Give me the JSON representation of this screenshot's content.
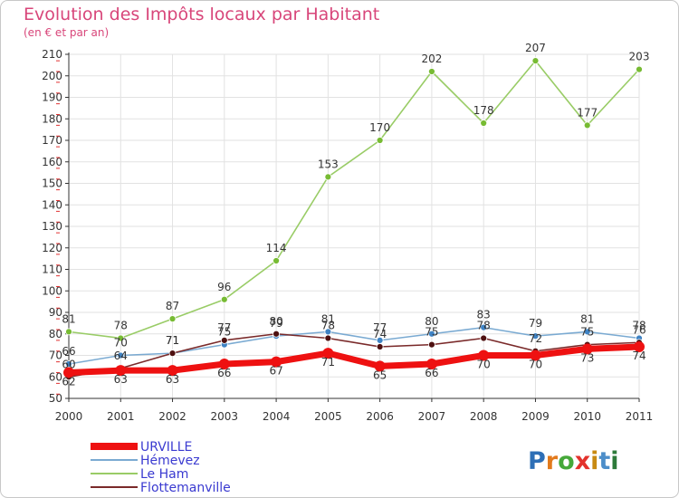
{
  "chart_data": {
    "type": "line",
    "title": "Evolution des Impôts locaux par Habitant",
    "subtitle": "(en € et par an)",
    "xlabel": "",
    "ylabel": "",
    "ylim": [
      50,
      210
    ],
    "yticks": [
      50,
      60,
      70,
      80,
      90,
      100,
      110,
      120,
      130,
      140,
      150,
      160,
      170,
      180,
      190,
      200,
      210
    ],
    "grid": true,
    "legend_position": "bottom-left",
    "x": [
      "2000",
      "2001",
      "2002",
      "2003",
      "2004",
      "2005",
      "2006",
      "2007",
      "2008",
      "2009",
      "2010",
      "2011"
    ],
    "series": [
      {
        "name": "Le Ham",
        "color": "#99cc66",
        "marker": "#77bb33",
        "values": [
          81,
          78,
          87,
          96,
          114,
          153,
          170,
          202,
          178,
          207,
          177,
          203
        ]
      },
      {
        "name": "Hémevez",
        "color": "#7aaad2",
        "marker": "#3f83c4",
        "values": [
          66,
          70,
          71,
          75,
          79,
          81,
          77,
          80,
          83,
          79,
          81,
          78
        ]
      },
      {
        "name": "Flottemanville",
        "color": "#7a2a2a",
        "marker": "#4e1010",
        "values": [
          60,
          64,
          71,
          77,
          80,
          78,
          74,
          75,
          78,
          72,
          75,
          76
        ]
      },
      {
        "name": "URVILLE",
        "color": "#ee1111",
        "marker": "#ee1111",
        "values": [
          62,
          63,
          63,
          66,
          67,
          71,
          65,
          66,
          70,
          70,
          73,
          74
        ]
      }
    ],
    "legend": [
      "URVILLE",
      "Hémevez",
      "Le Ham",
      "Flottemanville"
    ]
  },
  "logo": {
    "letters": [
      "P",
      "r",
      "o",
      "x",
      "i",
      "t",
      "i"
    ],
    "colors": [
      "#2e6fb6",
      "#e27a1c",
      "#46a83a",
      "#e3322c",
      "#c88a12",
      "#4d8ec9",
      "#2d7a3a"
    ]
  }
}
